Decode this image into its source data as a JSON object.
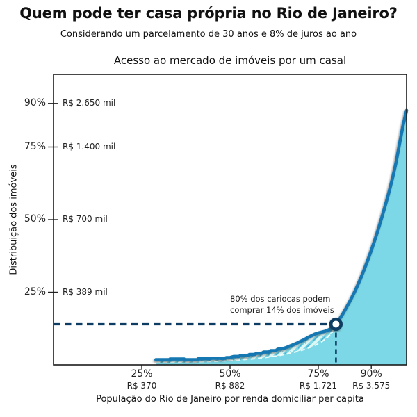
{
  "header": {
    "title": "Quem pode ter casa própria no Rio de Janeiro?",
    "subtitle": "Considerando um parcelamento de 30 anos e 8% de juros ao ano"
  },
  "chart_data": {
    "type": "line",
    "title": "Acesso ao mercado de imóveis por um casal",
    "xlabel": "População do Rio de Janeiro por renda domiciliar per capita",
    "ylabel": "Distribuição dos imóveis",
    "xlim": [
      0,
      100
    ],
    "ylim": [
      0,
      100
    ],
    "grid": false,
    "legend": "none",
    "x_ticks": [
      {
        "pct": 25,
        "label_pct": "25%",
        "label_value": "R$ 370"
      },
      {
        "pct": 50,
        "label_pct": "50%",
        "label_value": "R$ 882"
      },
      {
        "pct": 75,
        "label_pct": "75%",
        "label_value": "R$ 1.721"
      },
      {
        "pct": 90,
        "label_pct": "90%",
        "label_value": "R$ 3.575"
      }
    ],
    "y_ticks": [
      {
        "pct": 25,
        "label_pct": "25%",
        "label_value": "R$ 389 mil"
      },
      {
        "pct": 50,
        "label_pct": "50%",
        "label_value": "R$ 700 mil"
      },
      {
        "pct": 75,
        "label_pct": "75%",
        "label_value": "R$ 1.400 mil"
      },
      {
        "pct": 90,
        "label_pct": "90%",
        "label_value": "R$ 2.650 mil"
      }
    ],
    "series": [
      {
        "name": "acesso-casal-curva-superior",
        "points": [
          [
            29,
            1.8
          ],
          [
            33,
            1.8
          ],
          [
            33,
            2.0
          ],
          [
            37,
            2.0
          ],
          [
            37,
            1.8
          ],
          [
            41,
            1.8
          ],
          [
            41,
            2.1
          ],
          [
            44,
            2.1
          ],
          [
            45,
            2.3
          ],
          [
            47,
            2.3
          ],
          [
            48,
            2.1
          ],
          [
            49,
            2.5
          ],
          [
            50,
            2.5
          ],
          [
            51,
            2.9
          ],
          [
            52.5,
            2.9
          ],
          [
            53,
            3.2
          ],
          [
            55,
            3.2
          ],
          [
            55.5,
            3.6
          ],
          [
            57,
            3.6
          ],
          [
            57.5,
            4.0
          ],
          [
            59,
            4.0
          ],
          [
            59.5,
            4.4
          ],
          [
            61,
            4.4
          ],
          [
            61.5,
            4.9
          ],
          [
            63,
            4.9
          ],
          [
            63.5,
            5.4
          ],
          [
            65,
            5.6
          ],
          [
            66,
            6.0
          ],
          [
            67,
            6.5
          ],
          [
            68,
            7.0
          ],
          [
            69,
            7.5
          ],
          [
            70,
            8.1
          ],
          [
            71,
            8.7
          ],
          [
            72,
            9.4
          ],
          [
            73,
            10.0
          ],
          [
            74,
            10.6
          ],
          [
            75,
            11.0
          ],
          [
            76,
            11.3
          ],
          [
            77,
            11.6
          ],
          [
            78,
            12.1
          ],
          [
            79,
            12.9
          ],
          [
            80,
            14.0
          ],
          [
            81,
            15.8
          ],
          [
            82,
            17.7
          ],
          [
            83,
            19.8
          ],
          [
            84,
            22.0
          ],
          [
            85,
            24.4
          ],
          [
            86,
            27.0
          ],
          [
            87,
            29.8
          ],
          [
            88,
            32.8
          ],
          [
            89,
            36.0
          ],
          [
            90,
            39.4
          ],
          [
            91,
            43.0
          ],
          [
            92,
            46.8
          ],
          [
            93,
            50.8
          ],
          [
            94,
            55.0
          ],
          [
            95,
            59.4
          ],
          [
            96,
            64.2
          ],
          [
            97,
            69.6
          ],
          [
            98,
            76.0
          ],
          [
            99,
            82.4
          ],
          [
            100,
            87.6
          ]
        ]
      },
      {
        "name": "curva-inferior-banda-hachurada",
        "points": [
          [
            29,
            0.7
          ],
          [
            34,
            0.8
          ],
          [
            40,
            1.0
          ],
          [
            46,
            1.2
          ],
          [
            52,
            1.6
          ],
          [
            56,
            2.0
          ],
          [
            60,
            2.5
          ],
          [
            64,
            3.2
          ],
          [
            67,
            4.0
          ],
          [
            70,
            4.9
          ],
          [
            72,
            5.7
          ],
          [
            74,
            6.7
          ],
          [
            76,
            8.0
          ],
          [
            78,
            9.9
          ],
          [
            79,
            11.3
          ],
          [
            80,
            14.0
          ]
        ]
      }
    ],
    "annotation": {
      "line1": "80% dos cariocas podem",
      "line2": "comprar 14% dos imóveis",
      "x": 80,
      "y": 14
    },
    "colors": {
      "curve": "#1678b2",
      "fill": "#7cd8e6",
      "hatch_stripe": "#dcf7f4",
      "hatch_accent": "#35a2cc",
      "annotation_navy": "#0d3d63",
      "axis": "#1a1a1a"
    }
  }
}
